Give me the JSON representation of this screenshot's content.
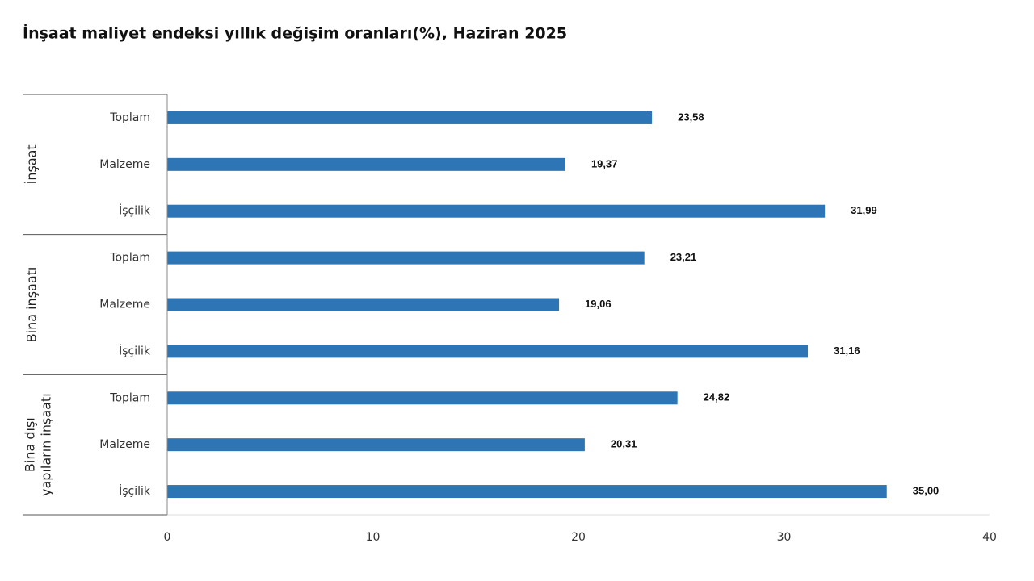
{
  "chart_data": {
    "type": "bar",
    "orientation": "horizontal",
    "title": "İnşaat maliyet endeksi yıllık değişim oranları(%), Haziran 2025",
    "color": "#2e75b6",
    "groups": [
      {
        "name": [
          "İnşaat"
        ],
        "categories": [
          "Toplam",
          "Malzeme",
          "İşçilik"
        ],
        "values": [
          23.58,
          19.37,
          31.99
        ],
        "value_labels": [
          "23,58",
          "19,37",
          "31,99"
        ]
      },
      {
        "name": [
          "Bina inşaatı"
        ],
        "categories": [
          "Toplam",
          "Malzeme",
          "İşçilik"
        ],
        "values": [
          23.21,
          19.06,
          31.16
        ],
        "value_labels": [
          "23,21",
          "19,06",
          "31,16"
        ]
      },
      {
        "name": [
          "Bina dışı",
          "yapıların inşaatı"
        ],
        "categories": [
          "Toplam",
          "Malzeme",
          "İşçilik"
        ],
        "values": [
          24.82,
          20.31,
          35
        ],
        "value_labels": [
          "24,82",
          "20,31",
          "35,00"
        ]
      }
    ],
    "xlim": [
      0,
      40
    ],
    "xticks": [
      0,
      10,
      20,
      30,
      40
    ]
  }
}
